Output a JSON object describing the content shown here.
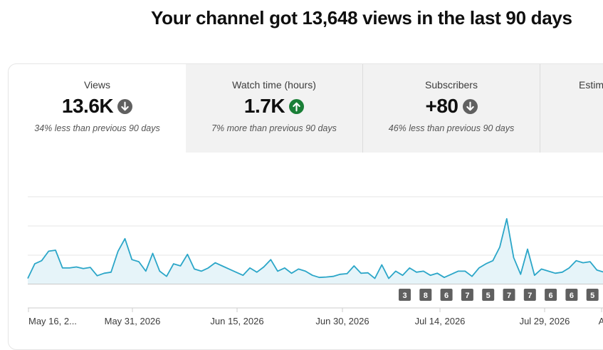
{
  "headline": "Your channel got 13,648 views in the last 90 days",
  "tabs": [
    {
      "title": "Views",
      "value": "13.6K",
      "trend": "down",
      "compare": "34% less than previous 90 days",
      "selected": true
    },
    {
      "title": "Watch time (hours)",
      "value": "1.7K",
      "trend": "up",
      "compare": "7% more than previous 90 days",
      "selected": false
    },
    {
      "title": "Subscribers",
      "value": "+80",
      "trend": "down",
      "compare": "46% less than previous 90 days",
      "selected": false
    },
    {
      "title": "Estim",
      "value": "",
      "trend": "",
      "compare": "",
      "selected": false
    }
  ],
  "colors": {
    "line": "#2ba6c8",
    "fill": "#e6f4f9",
    "trend_down": "#606060",
    "trend_up": "#1a7f37",
    "badge": "#606060"
  },
  "chart_data": {
    "type": "area",
    "x_tick_labels": [
      "May 16, 2...",
      "May 31, 2026",
      "Jun 15, 2026",
      "Jun 30, 2026",
      "Jul 14, 2026",
      "Jul 29, 2026",
      "A"
    ],
    "grid": true,
    "values": [
      25,
      95,
      110,
      155,
      160,
      75,
      75,
      80,
      72,
      78,
      38,
      50,
      55,
      155,
      215,
      115,
      105,
      60,
      145,
      60,
      35,
      95,
      85,
      140,
      70,
      60,
      75,
      100,
      85,
      70,
      55,
      40,
      75,
      55,
      80,
      115,
      60,
      75,
      50,
      70,
      60,
      40,
      30,
      32,
      35,
      45,
      48,
      85,
      50,
      52,
      25,
      90,
      25,
      60,
      40,
      75,
      55,
      60,
      40,
      50,
      30,
      45,
      60,
      60,
      35,
      75,
      95,
      110,
      175,
      310,
      125,
      45,
      165,
      40,
      70,
      60,
      50,
      55,
      75,
      110,
      100,
      105,
      65,
      55,
      75,
      75
    ]
  },
  "badges": [
    "3",
    "8",
    "6",
    "7",
    "5",
    "7",
    "7",
    "6",
    "6",
    "5"
  ]
}
